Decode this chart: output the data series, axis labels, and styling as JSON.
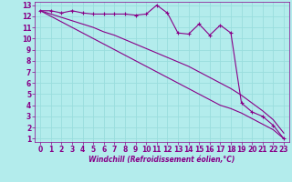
{
  "x": [
    0,
    1,
    2,
    3,
    4,
    5,
    6,
    7,
    8,
    9,
    10,
    11,
    12,
    13,
    14,
    15,
    16,
    17,
    18,
    19,
    20,
    21,
    22,
    23
  ],
  "y_main": [
    12.5,
    12.5,
    12.3,
    12.5,
    12.3,
    12.2,
    12.2,
    12.2,
    12.2,
    12.1,
    12.2,
    13.0,
    12.3,
    10.5,
    10.4,
    11.3,
    10.3,
    11.2,
    10.5,
    4.2,
    3.4,
    3.0,
    2.2,
    1.0
  ],
  "y_linear1": [
    12.5,
    12.0,
    11.5,
    11.0,
    10.5,
    10.0,
    9.5,
    9.0,
    8.5,
    8.0,
    7.5,
    7.0,
    6.5,
    6.0,
    5.5,
    5.0,
    4.5,
    4.0,
    3.7,
    3.3,
    2.8,
    2.3,
    1.8,
    1.0
  ],
  "y_linear2": [
    12.5,
    12.2,
    11.9,
    11.6,
    11.3,
    11.0,
    10.6,
    10.3,
    9.9,
    9.5,
    9.1,
    8.7,
    8.3,
    7.9,
    7.5,
    7.0,
    6.5,
    6.0,
    5.5,
    4.9,
    4.2,
    3.5,
    2.7,
    1.5
  ],
  "line_color": "#880088",
  "bg_color": "#b3ecec",
  "grid_color": "#99dddd",
  "xlabel": "Windchill (Refroidissement éolien,°C)",
  "xlim_min": -0.5,
  "xlim_max": 23.5,
  "ylim_min": 0.7,
  "ylim_max": 13.3,
  "xticks": [
    0,
    1,
    2,
    3,
    4,
    5,
    6,
    7,
    8,
    9,
    10,
    11,
    12,
    13,
    14,
    15,
    16,
    17,
    18,
    19,
    20,
    21,
    22,
    23
  ],
  "yticks": [
    1,
    2,
    3,
    4,
    5,
    6,
    7,
    8,
    9,
    10,
    11,
    12,
    13
  ],
  "tick_fontsize": 5.5,
  "xlabel_fontsize": 5.5
}
